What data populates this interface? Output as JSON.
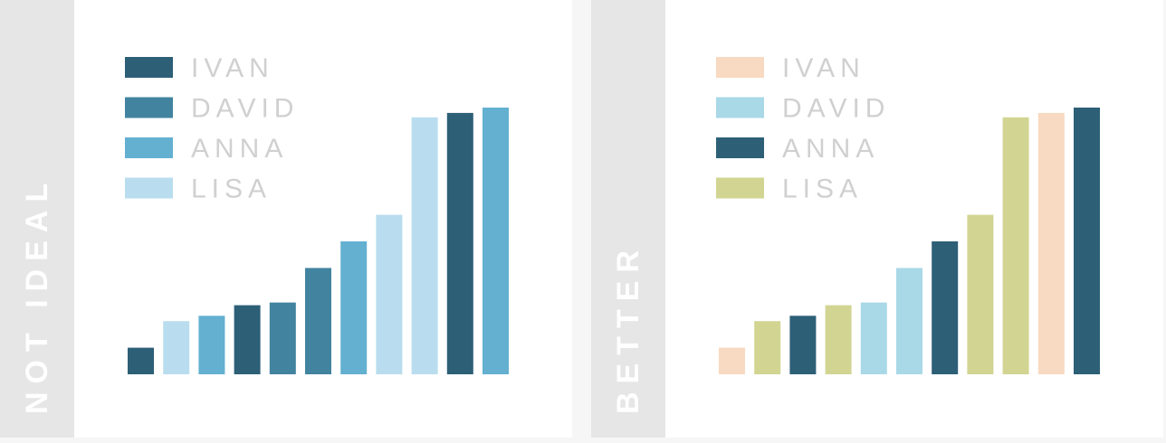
{
  "chart_data": [
    {
      "type": "bar",
      "panel_label": "NOT IDEAL",
      "legend": [
        {
          "name": "IVAN",
          "color": "#2d5f77"
        },
        {
          "name": "DAVID",
          "color": "#42849f"
        },
        {
          "name": "ANNA",
          "color": "#63b0d1"
        },
        {
          "name": "LISA",
          "color": "#b9ddee"
        }
      ],
      "bars": [
        {
          "value": 30,
          "series": "IVAN"
        },
        {
          "value": 60,
          "series": "LISA"
        },
        {
          "value": 66,
          "series": "ANNA"
        },
        {
          "value": 78,
          "series": "IVAN"
        },
        {
          "value": 81,
          "series": "DAVID"
        },
        {
          "value": 120,
          "series": "DAVID"
        },
        {
          "value": 150,
          "series": "ANNA"
        },
        {
          "value": 180,
          "series": "LISA"
        },
        {
          "value": 290,
          "series": "LISA"
        },
        {
          "value": 295,
          "series": "IVAN"
        },
        {
          "value": 301,
          "series": "ANNA"
        }
      ],
      "ylim": [
        0,
        301
      ]
    },
    {
      "type": "bar",
      "panel_label": "BETTER",
      "legend": [
        {
          "name": "IVAN",
          "color": "#f8d9c1"
        },
        {
          "name": "DAVID",
          "color": "#a9d8e7"
        },
        {
          "name": "ANNA",
          "color": "#2d5f77"
        },
        {
          "name": "LISA",
          "color": "#d2d592"
        }
      ],
      "bars": [
        {
          "value": 30,
          "series": "IVAN"
        },
        {
          "value": 60,
          "series": "LISA"
        },
        {
          "value": 66,
          "series": "ANNA"
        },
        {
          "value": 78,
          "series": "LISA"
        },
        {
          "value": 81,
          "series": "DAVID"
        },
        {
          "value": 120,
          "series": "DAVID"
        },
        {
          "value": 150,
          "series": "ANNA"
        },
        {
          "value": 180,
          "series": "LISA"
        },
        {
          "value": 290,
          "series": "LISA"
        },
        {
          "value": 295,
          "series": "IVAN"
        },
        {
          "value": 301,
          "series": "ANNA"
        }
      ],
      "ylim": [
        0,
        301
      ]
    }
  ]
}
